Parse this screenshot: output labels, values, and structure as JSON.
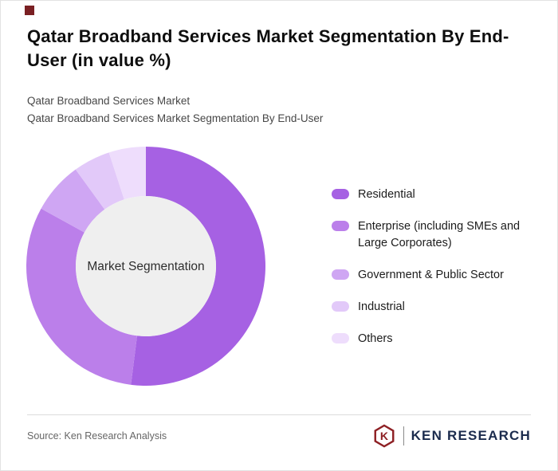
{
  "page": {
    "title": "Qatar Broadband Services Market Segmentation By End-User (in value %)",
    "subtitle_line1": "Qatar Broadband Services Market",
    "subtitle_line2": "Qatar Broadband Services Market Segmentation By End-User",
    "source_text": "Source: Ken Research Analysis",
    "brand": {
      "logo_letter": "K",
      "logo_text": "KEN RESEARCH",
      "accent_color": "#8e2024",
      "text_color": "#1b2b4d"
    }
  },
  "chart_data": {
    "type": "pie",
    "donut": true,
    "title": "Qatar Broadband Services Market Segmentation By End-User (in value %)",
    "center_label": "Market Segmentation",
    "categories": [
      "Residential",
      "Enterprise (including SMEs and Large Corporates)",
      "Government & Public Sector",
      "Industrial",
      "Others"
    ],
    "values": [
      52,
      31,
      7,
      5,
      5
    ],
    "colors": [
      "#a661e3",
      "#bb7fea",
      "#cfa6f3",
      "#e2c9f9",
      "#eeddfc"
    ],
    "center_fill": "#efefef",
    "start_angle_deg": 0,
    "legend_position": "right",
    "units": "value %"
  }
}
